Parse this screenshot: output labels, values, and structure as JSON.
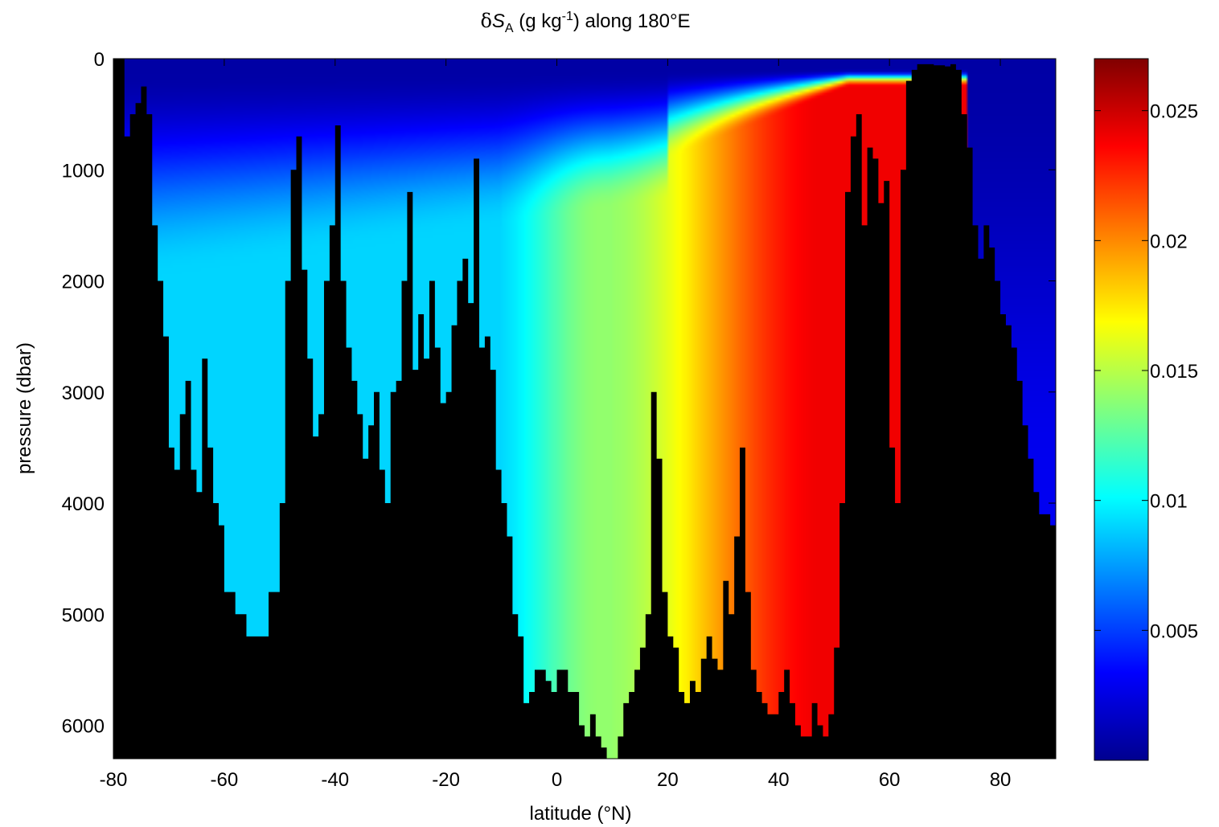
{
  "chart_data": {
    "type": "heatmap",
    "title": {
      "symbol": "δ",
      "var": "S",
      "sub": "A",
      "unit_open": " (g kg",
      "sup": "-1",
      "rest": ") along 180°E"
    },
    "xlabel": "latitude (°N)",
    "ylabel": "pressure (dbar)",
    "xlim": [
      -80,
      90
    ],
    "ylim": [
      0,
      6300
    ],
    "y_reversed": true,
    "xticks": [
      -80,
      -60,
      -40,
      -20,
      0,
      20,
      40,
      60,
      80
    ],
    "xtick_labels": [
      "-80",
      "-60",
      "-40",
      "-20",
      "0",
      "20",
      "40",
      "60",
      "80"
    ],
    "yticks": [
      0,
      1000,
      2000,
      3000,
      4000,
      5000,
      6000
    ],
    "ytick_labels": [
      "0",
      "1000",
      "2000",
      "3000",
      "4000",
      "5000",
      "6000"
    ],
    "colorbar": {
      "colormap": "jet",
      "clim": [
        0,
        0.027
      ],
      "ticks": [
        0.005,
        0.01,
        0.015,
        0.02,
        0.025
      ],
      "tick_labels": [
        "0.005",
        "0.01",
        "0.015",
        "0.02",
        "0.025"
      ]
    },
    "mask_color": "#000000",
    "field_description_values": {
      "surface_layer_value": 0.001,
      "southern_deep_value": 0.009,
      "equatorial_deep_value": 0.014,
      "north_pacific_deep_value": 0.024,
      "arctic_value": 0.001
    },
    "seafloor": {
      "lat": [
        -80,
        -78,
        -77,
        -76,
        -75,
        -74,
        -73,
        -72,
        -71,
        -70,
        -69,
        -68,
        -67,
        -66,
        -65,
        -64,
        -63,
        -62,
        -61,
        -60,
        -58,
        -56,
        -54,
        -52,
        -50,
        -49,
        -48,
        -47,
        -46,
        -45,
        -44,
        -43,
        -42,
        -41,
        -40,
        -39,
        -38,
        -37,
        -36,
        -35,
        -34,
        -33,
        -32,
        -31,
        -30,
        -29,
        -28,
        -27,
        -26,
        -25,
        -24,
        -23,
        -22,
        -21,
        -20,
        -19,
        -18,
        -17,
        -16,
        -15,
        -14,
        -13,
        -12,
        -11,
        -10,
        -9,
        -8,
        -7,
        -6,
        -5,
        -4,
        -3,
        -2,
        -1,
        0,
        2,
        4,
        5,
        6,
        7,
        8,
        9,
        10,
        11,
        12,
        13,
        14,
        15,
        16,
        17,
        18,
        19,
        20,
        21,
        22,
        23,
        24,
        25,
        26,
        27,
        28,
        29,
        30,
        31,
        32,
        33,
        34,
        35,
        36,
        37,
        38,
        39,
        40,
        41,
        42,
        43,
        44,
        45,
        46,
        47,
        48,
        49,
        50,
        51,
        52,
        53,
        54,
        55,
        56,
        57,
        58,
        59,
        60,
        61,
        62,
        63,
        64,
        65,
        66,
        67,
        68,
        69,
        70,
        71,
        72,
        73,
        74,
        75,
        76,
        77,
        78,
        79,
        80,
        81,
        82,
        83,
        84,
        85,
        86,
        87,
        88,
        89,
        90
      ],
      "pressure": [
        0,
        700,
        500,
        400,
        250,
        500,
        1500,
        2000,
        2500,
        3500,
        3700,
        3200,
        2900,
        3700,
        3900,
        2700,
        3500,
        4000,
        4200,
        4800,
        5000,
        5200,
        5200,
        4800,
        4000,
        2000,
        1000,
        700,
        1900,
        2700,
        3400,
        3200,
        2000,
        1500,
        600,
        2000,
        2600,
        2900,
        3200,
        3600,
        3300,
        3000,
        3700,
        4000,
        3000,
        2900,
        2000,
        1200,
        2800,
        2300,
        2700,
        2000,
        2600,
        3100,
        3000,
        2400,
        2000,
        1800,
        2200,
        900,
        2600,
        2500,
        2800,
        3700,
        4000,
        4300,
        5000,
        5200,
        5800,
        5700,
        5500,
        5500,
        5600,
        5700,
        5500,
        5700,
        6000,
        6100,
        5900,
        6100,
        6200,
        6300,
        6300,
        6100,
        5800,
        5700,
        5500,
        5300,
        5000,
        3000,
        3600,
        4800,
        5200,
        5300,
        5700,
        5800,
        5600,
        5700,
        5400,
        5200,
        5400,
        5500,
        4700,
        5000,
        4300,
        3500,
        4800,
        5500,
        5700,
        5800,
        5900,
        5900,
        5700,
        5500,
        5800,
        6000,
        6100,
        6100,
        5800,
        6000,
        6100,
        5900,
        5300,
        4000,
        1200,
        700,
        500,
        1500,
        800,
        900,
        1300,
        1100,
        3500,
        4000,
        1000,
        200,
        100,
        50,
        50,
        50,
        60,
        60,
        70,
        50,
        100,
        500,
        800,
        1500,
        1800,
        1500,
        1700,
        2000,
        2300,
        2400,
        2600,
        2900,
        3300,
        3600,
        3900,
        4100,
        4100,
        4200,
        4300
      ]
    }
  }
}
